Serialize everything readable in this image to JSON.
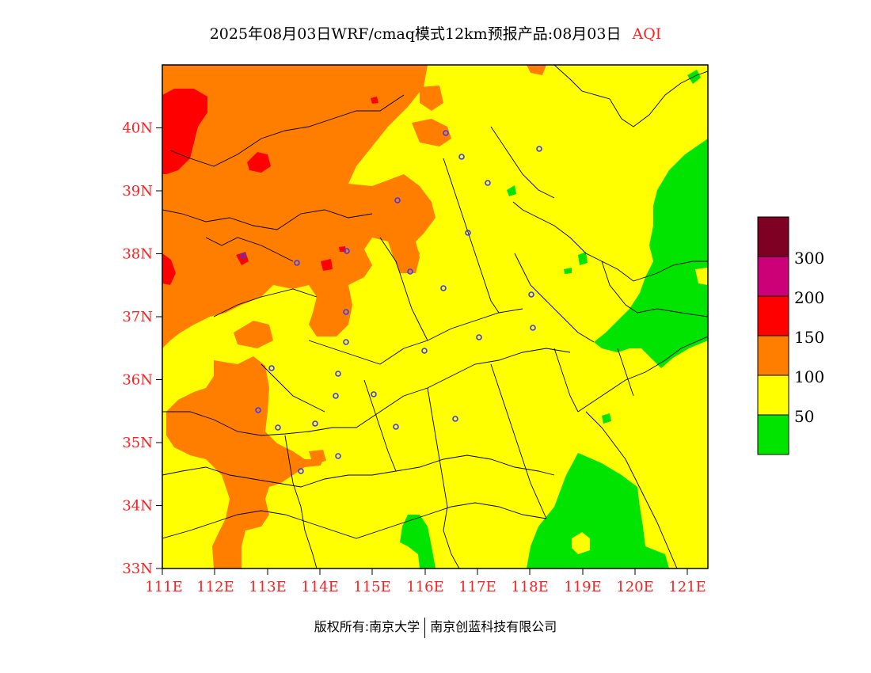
{
  "title": {
    "product": "2025年08月03日WRF/cmaq模式12km预报产品:08月03日",
    "variable": "AQI"
  },
  "colors": {
    "aqi_0_50": "#00e400",
    "aqi_50_100": "#ffff00",
    "aqi_100_150": "#ff7e00",
    "aqi_150_200": "#ff0000",
    "aqi_200_300": "#cc0077",
    "aqi_300_plus": "#7e0023",
    "axis_label": "#ff2020",
    "city_marker": "#3a3aff"
  },
  "axes": {
    "latitude_labels": [
      "33N",
      "34N",
      "35N",
      "36N",
      "37N",
      "38N",
      "39N",
      "40N"
    ],
    "longitude_labels": [
      "111E",
      "112E",
      "113E",
      "114E",
      "115E",
      "116E",
      "117E",
      "118E",
      "119E",
      "120E",
      "121E"
    ],
    "lat_range": [
      33,
      41
    ],
    "lon_range": [
      111,
      121.4
    ]
  },
  "legend": {
    "labels": [
      "300",
      "200",
      "150",
      "100",
      "50"
    ]
  },
  "footer": {
    "left": "版权所有:南京大学",
    "right": "南京创蓝科技有限公司"
  }
}
